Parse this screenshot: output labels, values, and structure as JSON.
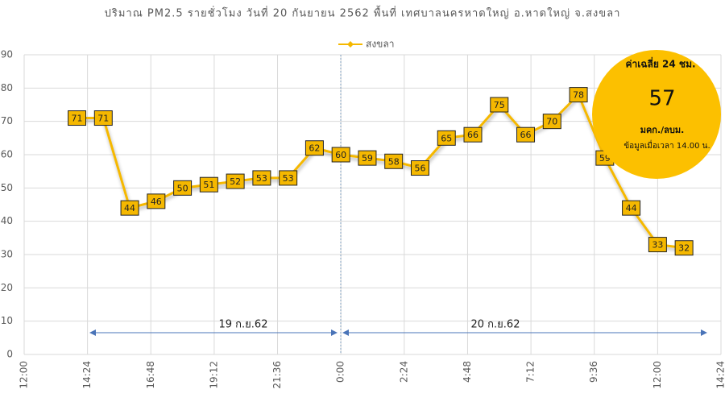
{
  "chart_data": {
    "type": "line",
    "title": "ปริมาณ PM2.5  รายชั่วโมง วันที่ 20 กันยายน 2562 พื้นที่ เทศบาลนครหาดใหญ่ อ.หาดใหญ่ จ.สงขลา",
    "x": [
      14,
      15,
      16,
      17,
      18,
      19,
      20,
      21,
      22,
      23,
      24,
      25,
      26,
      27,
      28,
      29,
      30,
      31,
      32,
      33,
      34,
      35,
      36,
      37
    ],
    "series": [
      {
        "name": "สงขลา",
        "color": "#f5b800",
        "values": [
          71,
          71,
          44,
          46,
          50,
          51,
          52,
          53,
          53,
          62,
          60,
          59,
          58,
          56,
          65,
          66,
          75,
          66,
          70,
          78,
          59,
          44,
          33,
          32
        ]
      }
    ],
    "xlim": [
      12,
      38.4
    ],
    "xticks": [
      {
        "value": 12,
        "label": "12:00"
      },
      {
        "value": 14.4,
        "label": "14:24"
      },
      {
        "value": 16.8,
        "label": "16:48"
      },
      {
        "value": 19.2,
        "label": "19:12"
      },
      {
        "value": 21.6,
        "label": "21:36"
      },
      {
        "value": 24,
        "label": "0:00"
      },
      {
        "value": 26.4,
        "label": "2:24"
      },
      {
        "value": 28.8,
        "label": "4:48"
      },
      {
        "value": 31.2,
        "label": "7:12"
      },
      {
        "value": 33.6,
        "label": "9:36"
      },
      {
        "value": 36,
        "label": "12:00"
      },
      {
        "value": 38.4,
        "label": "14:24"
      }
    ],
    "ylim": [
      0,
      90
    ],
    "yticks": [
      0,
      10,
      20,
      30,
      40,
      50,
      60,
      70,
      80,
      90
    ],
    "grid": true,
    "legend": "top",
    "annotations": {
      "day1": "19 ก.ย.62",
      "day2": "20 ก.ย.62"
    },
    "average": {
      "title": "ค่าเฉลี่ย 24 ชม.",
      "value": 57,
      "unit": "มคก./ลบม.",
      "note": "ข้อมูลเมื่อเวลา 14.00 น."
    }
  }
}
